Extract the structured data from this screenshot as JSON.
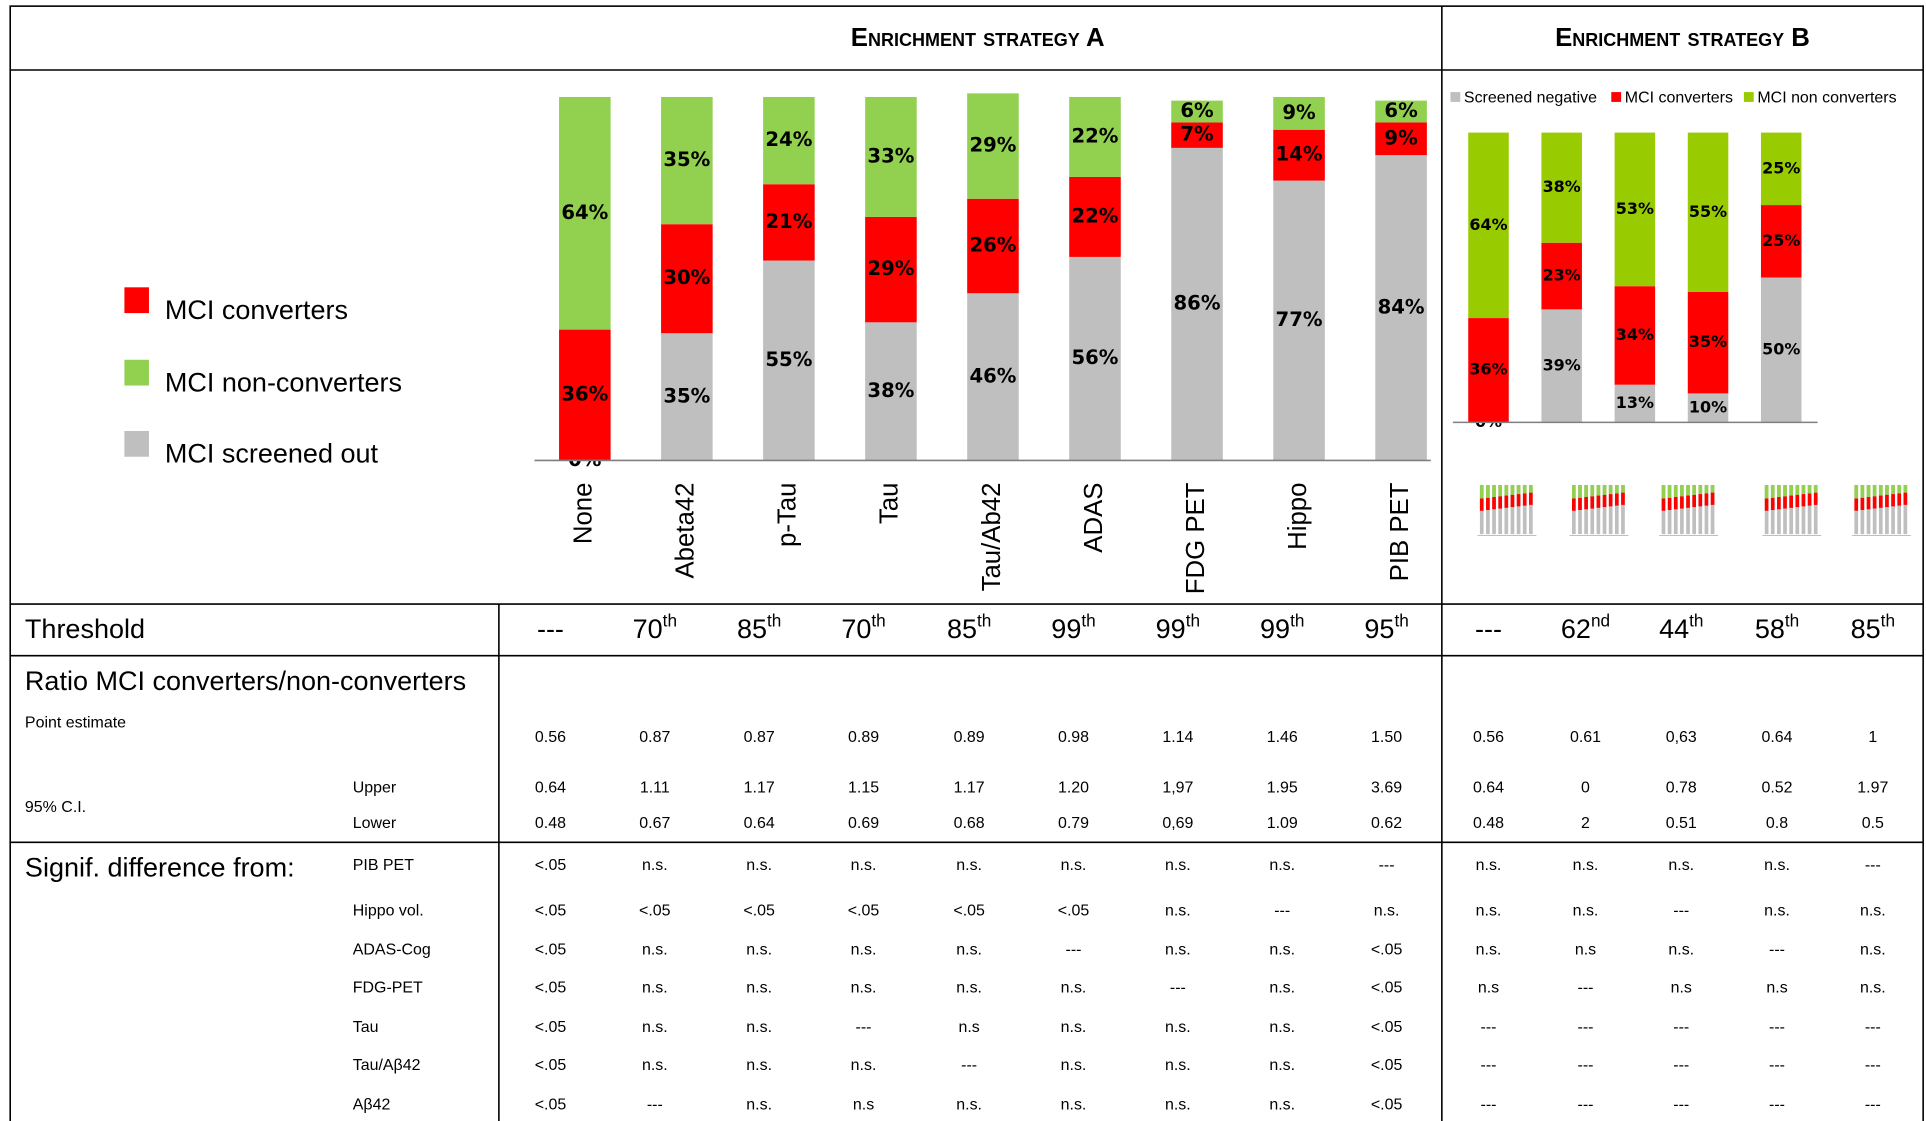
{
  "headers": [
    "Enrichment strategy A",
    "Enrichment strategy B"
  ],
  "chart_data": [
    {
      "type": "bar",
      "stacked": true,
      "categories": [
        "None",
        "Abeta42",
        "p-Tau",
        "Tau",
        "Tau/Ab42",
        "ADAS",
        "FDG PET",
        "Hippo",
        "PIB PET"
      ],
      "ylim": [
        0,
        100
      ],
      "series": [
        {
          "name": "MCI screened out",
          "color": "#bfbfbf",
          "values": [
            0,
            35,
            55,
            38,
            46,
            56,
            86,
            77,
            84
          ],
          "value_labels": [
            "0%",
            "35%",
            "55%",
            "38%",
            "46%",
            "56%",
            "86%",
            "77%",
            "84%"
          ]
        },
        {
          "name": "MCI converters",
          "color": "#ff0000",
          "values": [
            36,
            30,
            21,
            29,
            26,
            22,
            7,
            14,
            9
          ],
          "value_labels": [
            "36%",
            "30%",
            "21%",
            "29%",
            "26%",
            "22%",
            "7%",
            "14%",
            "9%"
          ]
        },
        {
          "name": "MCI non-converters",
          "color": "#92d050",
          "values": [
            64,
            35,
            24,
            33,
            29,
            22,
            6,
            9,
            6
          ],
          "value_labels": [
            "64%",
            "35%",
            "24%",
            "33%",
            "29%",
            "22%",
            "6%",
            "9%",
            "6%"
          ]
        }
      ]
    },
    {
      "type": "bar",
      "stacked": true,
      "ylim": [
        0,
        100
      ],
      "series": [
        {
          "name": "Screened negative",
          "color": "#bfbfbf",
          "values": [
            0,
            39,
            13,
            10,
            50
          ],
          "value_labels": [
            "0%",
            "39%",
            "13%",
            "10%",
            "50%"
          ]
        },
        {
          "name": "MCI converters",
          "color": "#ff0000",
          "values": [
            36,
            23,
            34,
            35,
            25
          ],
          "value_labels": [
            "36%",
            "23%",
            "34%",
            "35%",
            "25%"
          ]
        },
        {
          "name": "MCI non converters",
          "color": "#99cc00",
          "values": [
            64,
            38,
            53,
            55,
            25
          ],
          "value_labels": [
            "64%",
            "38%",
            "53%",
            "55%",
            "25%"
          ]
        }
      ]
    }
  ],
  "table": {
    "threshold": {
      "label": "Threshold",
      "cells": [
        {
          "n": "---"
        },
        {
          "n": "70",
          "sup": "th"
        },
        {
          "n": "85",
          "sup": "th"
        },
        {
          "n": "70",
          "sup": "th"
        },
        {
          "n": "85",
          "sup": "th"
        },
        {
          "n": "99",
          "sup": "th"
        },
        {
          "n": "99",
          "sup": "th"
        },
        {
          "n": "99",
          "sup": "th"
        },
        {
          "n": "95",
          "sup": "th"
        },
        {
          "n": "---"
        },
        {
          "n": "62",
          "sup": "nd"
        },
        {
          "n": "44",
          "sup": "th"
        },
        {
          "n": "58",
          "sup": "th"
        },
        {
          "n": "85",
          "sup": "th"
        }
      ]
    },
    "ratio": {
      "title": "Ratio MCI converters/non-converters",
      "point": {
        "label": "Point estimate",
        "cells": [
          "0.56",
          "0.87",
          "0.87",
          "0.89",
          "0.89",
          "0.98",
          "1.14",
          "1.46",
          "1.50",
          "0.56",
          "0.61",
          "0,63",
          "0.64",
          "1"
        ]
      },
      "ci": {
        "label": "95% C.I.",
        "upper": {
          "label": "Upper",
          "cells": [
            "0.64",
            "1.11",
            "1.17",
            "1.15",
            "1.17",
            "1.20",
            "1,97",
            "1.95",
            "3.69",
            "0.64",
            "0",
            "0.78",
            "0.52",
            "1.97"
          ]
        },
        "lower": {
          "label": "Lower",
          "cells": [
            "0.48",
            "0.67",
            "0.64",
            "0.69",
            "0.68",
            "0.79",
            "0,69",
            "1.09",
            "0.62",
            "0.48",
            "2",
            "0.51",
            "0.8",
            "0.5"
          ]
        }
      }
    },
    "signif": {
      "title": "Signif. difference from:",
      "rows": [
        {
          "label": "PIB PET",
          "cells": [
            "<.05",
            "n.s.",
            "n.s.",
            "n.s.",
            "n.s.",
            "n.s.",
            "n.s.",
            "n.s.",
            "---",
            "n.s.",
            "n.s.",
            "n.s.",
            "n.s.",
            "---"
          ]
        },
        {
          "label": "Hippo vol.",
          "cells": [
            "<.05",
            "<.05",
            "<.05",
            "<.05",
            "<.05",
            "<.05",
            "n.s.",
            "---",
            "n.s.",
            "n.s.",
            "n.s.",
            "---",
            "n.s.",
            "n.s."
          ]
        },
        {
          "label": "ADAS-Cog",
          "cells": [
            "<.05",
            "n.s.",
            "n.s.",
            "n.s.",
            "n.s.",
            "---",
            "n.s.",
            "n.s.",
            "<.05",
            "n.s.",
            "n.s",
            "n.s.",
            "---",
            "n.s."
          ]
        },
        {
          "label": "FDG-PET",
          "cells": [
            "<.05",
            "n.s.",
            "n.s.",
            "n.s.",
            "n.s.",
            "n.s.",
            "---",
            "n.s.",
            "<.05",
            "n.s",
            "---",
            "n.s",
            "n.s",
            "n.s."
          ]
        },
        {
          "label": "Tau",
          "cells": [
            "<.05",
            "n.s.",
            "n.s.",
            "---",
            "n.s",
            "n.s.",
            "n.s.",
            "n.s.",
            "<.05",
            "---",
            "---",
            "---",
            "---",
            "---"
          ]
        },
        {
          "label": "Tau/Aβ42",
          "cells": [
            "<.05",
            "n.s.",
            "n.s.",
            "n.s.",
            "---",
            "n.s.",
            "n.s.",
            "n.s.",
            "<.05",
            "---",
            "---",
            "---",
            "---",
            "---"
          ]
        },
        {
          "label": "Aβ42",
          "cells": [
            "<.05",
            "---",
            "n.s.",
            "n.s",
            "n.s.",
            "n.s.",
            "n.s.",
            "n.s.",
            "<.05",
            "---",
            "---",
            "---",
            "---",
            "---"
          ]
        }
      ]
    }
  }
}
